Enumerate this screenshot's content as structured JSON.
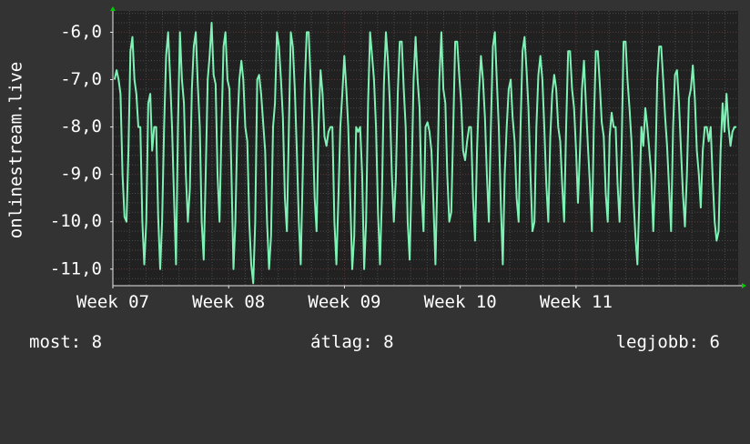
{
  "chart_data": {
    "type": "line",
    "ylabel": "onlinestream.live",
    "ylim": [
      -11.35,
      -5.55
    ],
    "yticks": [
      {
        "value": -6,
        "label": "-6,0"
      },
      {
        "value": -7,
        "label": "-7,0"
      },
      {
        "value": -8,
        "label": "-8,0"
      },
      {
        "value": -9,
        "label": "-9,0"
      },
      {
        "value": -10,
        "label": "-10,0"
      },
      {
        "value": -11,
        "label": "-11,0"
      }
    ],
    "xlim": [
      0,
      5.4
    ],
    "xticks": [
      {
        "value": 0,
        "label": "Week 07"
      },
      {
        "value": 1,
        "label": "Week 08"
      },
      {
        "value": 2,
        "label": "Week 09"
      },
      {
        "value": 3,
        "label": "Week 10"
      },
      {
        "value": 4,
        "label": "Week 11"
      }
    ],
    "grid": true,
    "colors": {
      "background": "#333333",
      "plot_background": "#212121",
      "grid": "#4a4a4a",
      "grid_major": "#5a3030",
      "line": "#7ef2b5",
      "axis": "#e8e8e8",
      "arrow": "#00cc00"
    },
    "series": [
      {
        "values": [
          -7.0,
          -6.8,
          -7.0,
          -7.3,
          -9.0,
          -9.9,
          -10.0,
          -8.5,
          -6.4,
          -6.1,
          -7.0,
          -7.3,
          -8.0,
          -8.0,
          -10.0,
          -10.9,
          -10.0,
          -7.5,
          -7.3,
          -8.5,
          -8.0,
          -8.0,
          -9.9,
          -11.0,
          -10.0,
          -8.0,
          -6.5,
          -6.0,
          -6.9,
          -8.0,
          -9.5,
          -10.9,
          -8.0,
          -6.0,
          -7.0,
          -7.5,
          -9.0,
          -10.0,
          -9.3,
          -7.2,
          -6.3,
          -6.0,
          -7.1,
          -8.0,
          -10.0,
          -10.8,
          -9.0,
          -7.0,
          -6.5,
          -5.8,
          -6.9,
          -7.1,
          -9.0,
          -10.0,
          -8.0,
          -6.3,
          -6.0,
          -7.0,
          -7.2,
          -9.0,
          -11.0,
          -10.0,
          -8.0,
          -7.0,
          -6.6,
          -7.0,
          -8.0,
          -8.3,
          -10.0,
          -10.9,
          -11.3,
          -10.0,
          -7.0,
          -6.9,
          -7.3,
          -7.9,
          -8.5,
          -10.0,
          -11.0,
          -10.3,
          -8.0,
          -7.5,
          -6.0,
          -6.3,
          -7.0,
          -7.8,
          -9.5,
          -10.2,
          -8.0,
          -6.0,
          -6.3,
          -7.2,
          -8.5,
          -10.0,
          -10.9,
          -9.0,
          -7.1,
          -6.0,
          -6.0,
          -7.0,
          -8.0,
          -9.5,
          -10.2,
          -8.0,
          -6.8,
          -7.3,
          -8.2,
          -8.4,
          -8.1,
          -8.0,
          -8.0,
          -10.0,
          -10.9,
          -9.5,
          -8.0,
          -7.3,
          -6.5,
          -7.2,
          -8.0,
          -9.5,
          -11.0,
          -10.3,
          -8.0,
          -8.1,
          -8.0,
          -9.0,
          -11.0,
          -10.0,
          -7.5,
          -6.0,
          -6.5,
          -7.0,
          -8.0,
          -9.8,
          -10.9,
          -9.5,
          -7.1,
          -6.0,
          -6.6,
          -7.5,
          -9.0,
          -10.0,
          -9.1,
          -7.3,
          -6.2,
          -6.2,
          -7.2,
          -8.0,
          -10.0,
          -10.8,
          -9.0,
          -7.0,
          -6.1,
          -7.0,
          -7.6,
          -9.4,
          -10.2,
          -8.0,
          -7.9,
          -8.1,
          -8.5,
          -9.6,
          -10.9,
          -9.0,
          -7.0,
          -6.0,
          -7.2,
          -7.5,
          -9.0,
          -10.0,
          -9.8,
          -8.0,
          -6.2,
          -6.2,
          -6.9,
          -7.5,
          -8.5,
          -8.7,
          -8.3,
          -8.0,
          -8.0,
          -9.5,
          -10.4,
          -8.5,
          -7.3,
          -6.5,
          -7.0,
          -7.8,
          -9.0,
          -10.0,
          -8.0,
          -6.3,
          -6.0,
          -7.0,
          -8.0,
          -9.6,
          -10.9,
          -9.0,
          -8.0,
          -7.2,
          -7.0,
          -7.8,
          -8.3,
          -9.5,
          -10.0,
          -8.0,
          -6.4,
          -6.1,
          -6.8,
          -7.6,
          -9.0,
          -10.2,
          -10.0,
          -8.0,
          -6.9,
          -6.5,
          -7.0,
          -8.0,
          -9.2,
          -10.0,
          -8.2,
          -7.3,
          -6.9,
          -7.2,
          -8.0,
          -8.3,
          -9.2,
          -10.0,
          -8.0,
          -6.4,
          -6.4,
          -7.2,
          -7.6,
          -8.5,
          -9.6,
          -8.5,
          -7.2,
          -6.6,
          -7.5,
          -8.4,
          -9.2,
          -10.2,
          -8.0,
          -6.4,
          -6.4,
          -7.1,
          -7.9,
          -8.2,
          -9.4,
          -10.0,
          -8.2,
          -7.7,
          -8.0,
          -8.0,
          -9.2,
          -10.0,
          -8.5,
          -6.2,
          -6.2,
          -7.0,
          -7.6,
          -8.3,
          -9.5,
          -10.3,
          -10.9,
          -9.5,
          -8.0,
          -8.4,
          -7.6,
          -8.0,
          -8.5,
          -9.0,
          -10.2,
          -9.0,
          -7.0,
          -6.3,
          -6.3,
          -7.0,
          -7.8,
          -8.4,
          -9.3,
          -10.2,
          -8.0,
          -6.9,
          -6.8,
          -7.5,
          -8.5,
          -9.4,
          -10.1,
          -9.0,
          -7.4,
          -7.2,
          -6.7,
          -7.4,
          -8.5,
          -9.0,
          -9.7,
          -8.5,
          -8.0,
          -8.0,
          -8.3,
          -8.0,
          -9.1,
          -10.0,
          -10.4,
          -10.2,
          -8.5,
          -7.5,
          -8.1,
          -7.3,
          -8.0,
          -8.4,
          -8.1,
          -8.0,
          -8.0
        ]
      }
    ]
  },
  "stats": {
    "now": "most: 8",
    "avg": "átlag: 8",
    "best": "legjobb: 6"
  }
}
